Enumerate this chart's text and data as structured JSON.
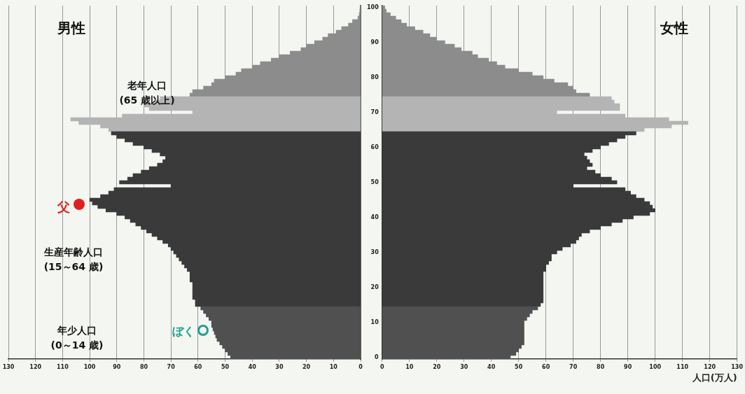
{
  "chart_data": [
    {
      "type": "bar",
      "orientation": "horizontal",
      "title": "男性",
      "categories": [
        "100",
        null,
        null,
        null,
        null,
        null,
        null,
        null,
        null,
        null,
        "90",
        null,
        null,
        null,
        null,
        null,
        null,
        null,
        null,
        null,
        "80",
        null,
        null,
        null,
        null,
        null,
        null,
        null,
        null,
        null,
        "70",
        null,
        null,
        null,
        null,
        null,
        null,
        null,
        null,
        null,
        "60",
        null,
        null,
        null,
        null,
        null,
        null,
        null,
        null,
        null,
        "50",
        null,
        null,
        null,
        null,
        null,
        null,
        null,
        null,
        null,
        "40",
        null,
        null,
        null,
        null,
        null,
        null,
        null,
        null,
        null,
        "30",
        null,
        null,
        null,
        null,
        null,
        null,
        null,
        null,
        null,
        "20",
        null,
        null,
        null,
        null,
        null,
        null,
        null,
        null,
        null,
        "10",
        null,
        null,
        null,
        null,
        null,
        null,
        null,
        null,
        null,
        "0"
      ],
      "values": [
        0.2,
        0.3,
        0.5,
        1,
        3,
        4.5,
        7,
        9,
        12,
        14,
        17,
        20,
        22,
        26,
        30,
        33,
        37,
        40,
        44,
        46,
        50,
        54,
        55,
        58,
        62,
        63,
        74,
        76,
        80,
        78,
        62,
        88,
        107,
        104,
        96,
        93,
        92,
        90,
        87,
        84,
        80,
        77,
        74,
        72,
        73,
        75,
        78,
        81,
        84,
        86,
        89,
        70,
        91,
        93,
        96,
        100,
        99,
        97,
        94,
        90,
        87,
        85,
        83,
        81,
        79,
        77,
        75,
        73,
        71,
        70,
        69,
        68,
        67,
        66,
        65,
        64,
        63,
        63,
        63,
        62,
        62,
        62,
        62,
        62,
        61,
        61,
        59,
        58,
        57,
        56,
        55,
        55,
        54.5,
        54,
        53.5,
        53,
        52,
        51,
        50,
        49,
        48
      ],
      "colors": [
        "#8c8c8c",
        "#8c8c8c",
        "#8c8c8c",
        "#8c8c8c",
        "#8c8c8c",
        "#8c8c8c",
        "#8c8c8c",
        "#8c8c8c",
        "#8c8c8c",
        "#8c8c8c",
        "#8c8c8c",
        "#8c8c8c",
        "#8c8c8c",
        "#8c8c8c",
        "#8c8c8c",
        "#8c8c8c",
        "#8c8c8c",
        "#8c8c8c",
        "#8c8c8c",
        "#8c8c8c",
        "#8c8c8c",
        "#8c8c8c",
        "#8c8c8c",
        "#8c8c8c",
        "#8c8c8c",
        "#8c8c8c",
        "#b4b4b4",
        "#b4b4b4",
        "#b4b4b4",
        "#b4b4b4",
        "#b4b4b4",
        "#b4b4b4",
        "#b4b4b4",
        "#b4b4b4",
        "#b4b4b4",
        "#b4b4b4",
        "#3a3a3a",
        "#3a3a3a",
        "#3a3a3a",
        "#3a3a3a",
        "#3a3a3a",
        "#3a3a3a",
        "#3a3a3a",
        "#3a3a3a",
        "#3a3a3a",
        "#3a3a3a",
        "#3a3a3a",
        "#3a3a3a",
        "#3a3a3a",
        "#3a3a3a",
        "#3a3a3a",
        "#3a3a3a",
        "#3a3a3a",
        "#3a3a3a",
        "#3a3a3a",
        "#3a3a3a",
        "#3a3a3a",
        "#3a3a3a",
        "#3a3a3a",
        "#3a3a3a",
        "#3a3a3a",
        "#3a3a3a",
        "#3a3a3a",
        "#3a3a3a",
        "#3a3a3a",
        "#3a3a3a",
        "#3a3a3a",
        "#3a3a3a",
        "#3a3a3a",
        "#3a3a3a",
        "#3a3a3a",
        "#3a3a3a",
        "#3a3a3a",
        "#3a3a3a",
        "#3a3a3a",
        "#3a3a3a",
        "#3a3a3a",
        "#3a3a3a",
        "#3a3a3a",
        "#3a3a3a",
        "#3a3a3a",
        "#3a3a3a",
        "#3a3a3a",
        "#3a3a3a",
        "#3a3a3a",
        "#3a3a3a",
        "#505050",
        "#505050",
        "#505050",
        "#505050",
        "#505050",
        "#505050",
        "#505050",
        "#505050",
        "#505050",
        "#505050",
        "#505050",
        "#505050",
        "#505050",
        "#505050",
        "#505050"
      ],
      "xlim": [
        130,
        0
      ],
      "xticks": [
        0,
        10,
        20,
        30,
        40,
        50,
        60,
        70,
        80,
        90,
        100,
        110,
        120,
        130
      ],
      "grid": "x",
      "tick_labels": "x",
      "annotations": [
        "老年人口\n(65 歳以上)",
        "生産年齢人口\n(15～64 歳)",
        "年少人口\n(0～14 歳)",
        "父",
        "ぼく"
      ]
    },
    {
      "type": "bar",
      "orientation": "horizontal",
      "title": "女性",
      "xlabel": "人口(万人)",
      "categories": [
        "100",
        null,
        null,
        null,
        null,
        null,
        null,
        null,
        null,
        null,
        "90",
        null,
        null,
        null,
        null,
        null,
        null,
        null,
        null,
        null,
        "80",
        null,
        null,
        null,
        null,
        null,
        null,
        null,
        null,
        null,
        "70",
        null,
        null,
        null,
        null,
        null,
        null,
        null,
        null,
        null,
        "60",
        null,
        null,
        null,
        null,
        null,
        null,
        null,
        null,
        null,
        "50",
        null,
        null,
        null,
        null,
        null,
        null,
        null,
        null,
        null,
        "40",
        null,
        null,
        null,
        null,
        null,
        null,
        null,
        null,
        null,
        "30",
        null,
        null,
        null,
        null,
        null,
        null,
        null,
        null,
        null,
        "20",
        null,
        null,
        null,
        null,
        null,
        null,
        null,
        null,
        null,
        "10",
        null,
        null,
        null,
        null,
        null,
        null,
        null,
        null,
        null,
        "0"
      ],
      "values": [
        1,
        1.5,
        3,
        5,
        7,
        9,
        12,
        15,
        17.5,
        20,
        23,
        26.5,
        29,
        33,
        35,
        39,
        42,
        45,
        50,
        55,
        59,
        63,
        68,
        70,
        71,
        76,
        84,
        85,
        87,
        87,
        64,
        89,
        105,
        112,
        106,
        96,
        93,
        89,
        86,
        83,
        80,
        77,
        74,
        75,
        76,
        77,
        75,
        78,
        80,
        84,
        86,
        70,
        89,
        91,
        93,
        96,
        98,
        99,
        100,
        98,
        92,
        88,
        84,
        80,
        76,
        73,
        72,
        71,
        69,
        66,
        64,
        62,
        62,
        61,
        60,
        60,
        59,
        59,
        59,
        59,
        59,
        59,
        59,
        59,
        59,
        58,
        57,
        55,
        54,
        53,
        52,
        52,
        52,
        52,
        52,
        52,
        52,
        51,
        50,
        49,
        47
      ],
      "colors": [
        "#8c8c8c",
        "#8c8c8c",
        "#8c8c8c",
        "#8c8c8c",
        "#8c8c8c",
        "#8c8c8c",
        "#8c8c8c",
        "#8c8c8c",
        "#8c8c8c",
        "#8c8c8c",
        "#8c8c8c",
        "#8c8c8c",
        "#8c8c8c",
        "#8c8c8c",
        "#8c8c8c",
        "#8c8c8c",
        "#8c8c8c",
        "#8c8c8c",
        "#8c8c8c",
        "#8c8c8c",
        "#8c8c8c",
        "#8c8c8c",
        "#8c8c8c",
        "#8c8c8c",
        "#8c8c8c",
        "#8c8c8c",
        "#b4b4b4",
        "#b4b4b4",
        "#b4b4b4",
        "#b4b4b4",
        "#b4b4b4",
        "#b4b4b4",
        "#b4b4b4",
        "#b4b4b4",
        "#b4b4b4",
        "#b4b4b4",
        "#3a3a3a",
        "#3a3a3a",
        "#3a3a3a",
        "#3a3a3a",
        "#3a3a3a",
        "#3a3a3a",
        "#3a3a3a",
        "#3a3a3a",
        "#3a3a3a",
        "#3a3a3a",
        "#3a3a3a",
        "#3a3a3a",
        "#3a3a3a",
        "#3a3a3a",
        "#3a3a3a",
        "#3a3a3a",
        "#3a3a3a",
        "#3a3a3a",
        "#3a3a3a",
        "#3a3a3a",
        "#3a3a3a",
        "#3a3a3a",
        "#3a3a3a",
        "#3a3a3a",
        "#3a3a3a",
        "#3a3a3a",
        "#3a3a3a",
        "#3a3a3a",
        "#3a3a3a",
        "#3a3a3a",
        "#3a3a3a",
        "#3a3a3a",
        "#3a3a3a",
        "#3a3a3a",
        "#3a3a3a",
        "#3a3a3a",
        "#3a3a3a",
        "#3a3a3a",
        "#3a3a3a",
        "#3a3a3a",
        "#3a3a3a",
        "#3a3a3a",
        "#3a3a3a",
        "#3a3a3a",
        "#3a3a3a",
        "#3a3a3a",
        "#3a3a3a",
        "#3a3a3a",
        "#3a3a3a",
        "#3a3a3a",
        "#505050",
        "#505050",
        "#505050",
        "#505050",
        "#505050",
        "#505050",
        "#505050",
        "#505050",
        "#505050",
        "#505050",
        "#505050",
        "#505050",
        "#505050",
        "#505050",
        "#505050"
      ],
      "xlim": [
        0,
        130
      ],
      "xticks": [
        0,
        10,
        20,
        30,
        40,
        50,
        60,
        70,
        80,
        90,
        100,
        110,
        120,
        130
      ],
      "grid": "x"
    }
  ]
}
